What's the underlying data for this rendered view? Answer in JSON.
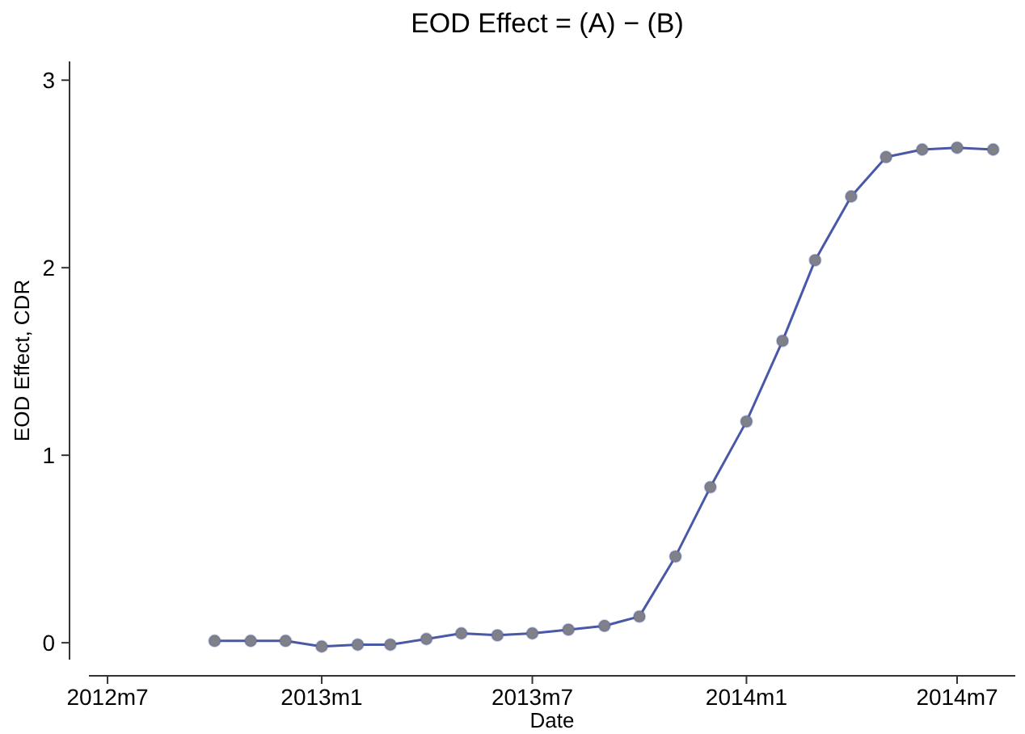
{
  "chart_data": {
    "type": "line",
    "title": "EOD Effect = (A) − (B)",
    "xlabel": "Date",
    "ylabel": "EOD Effect, CDR",
    "x": [
      "2012-10",
      "2012-11",
      "2012-12",
      "2013-01",
      "2013-02",
      "2013-03",
      "2013-04",
      "2013-05",
      "2013-06",
      "2013-07",
      "2013-08",
      "2013-09",
      "2013-10",
      "2013-11",
      "2013-12",
      "2014-01",
      "2014-02",
      "2014-03",
      "2014-04",
      "2014-05",
      "2014-06",
      "2014-07",
      "2014-08"
    ],
    "series": [
      {
        "color": "#4a58a8",
        "values": [
          0.01,
          0.01,
          0.01,
          -0.02,
          -0.01,
          -0.01,
          0.02,
          0.05,
          0.04,
          0.05,
          0.07,
          0.09,
          0.14,
          0.46,
          0.83,
          1.18,
          1.61,
          2.04,
          2.38,
          2.59,
          2.63,
          2.64,
          2.63
        ]
      }
    ],
    "xlim": [
      "2012-06-15",
      "2014-08-20"
    ],
    "xticks": [
      {
        "value": "2012-07",
        "label": "2012m7"
      },
      {
        "value": "2013-01",
        "label": "2013m1"
      },
      {
        "value": "2013-07",
        "label": "2013m7"
      },
      {
        "value": "2014-01",
        "label": "2014m1"
      },
      {
        "value": "2014-07",
        "label": "2014m7"
      }
    ],
    "ylim": [
      -0.09,
      3.1
    ],
    "yticks": [
      0,
      1,
      2,
      3
    ],
    "marker": "circle",
    "line_style": "solid"
  }
}
